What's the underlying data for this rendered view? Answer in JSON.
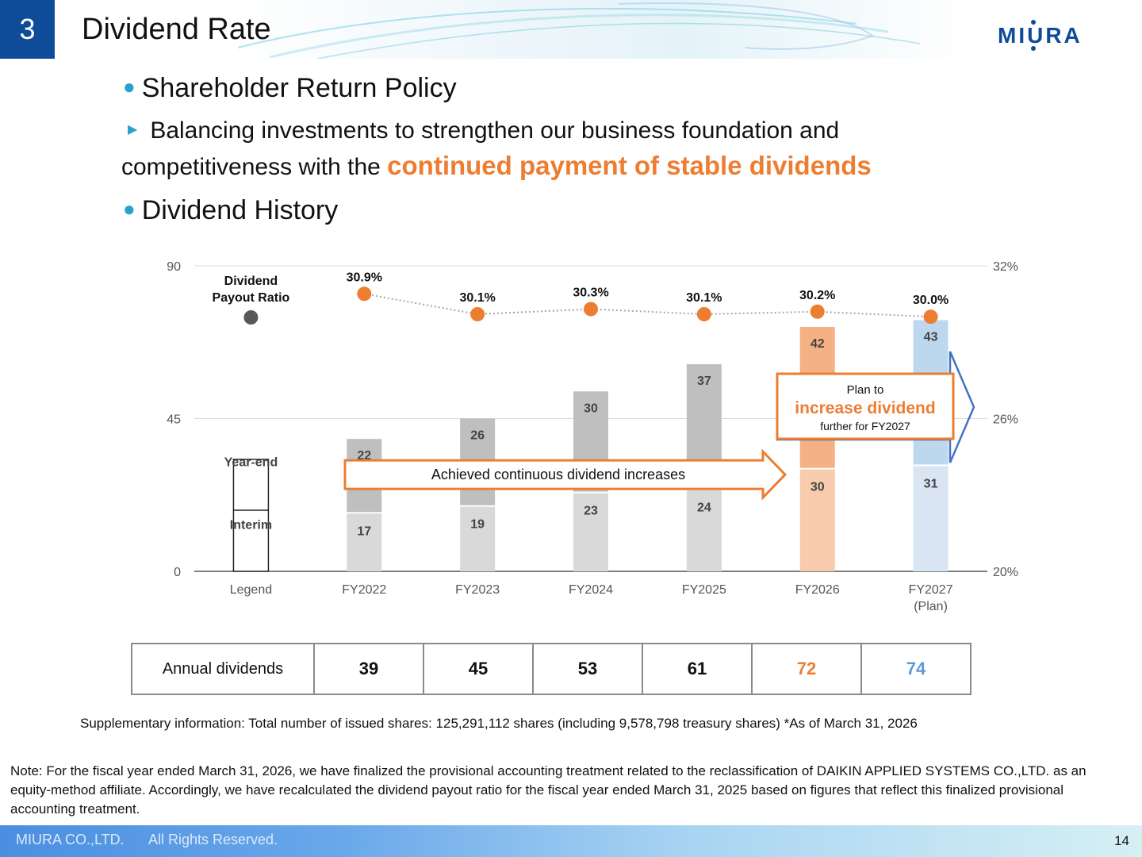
{
  "header": {
    "section_number": "3",
    "title": "Dividend Rate",
    "logo_text": "MIURA"
  },
  "policy": {
    "heading": "Shareholder Return Policy",
    "line1": "Balancing investments to strengthen our business foundation and",
    "line2_prefix": "competitiveness with the ",
    "line2_highlight": "continued payment of stable dividends"
  },
  "history": {
    "heading": "Dividend History"
  },
  "chart_data": {
    "type": "bar",
    "stacked": true,
    "categories": [
      "Legend",
      "FY2022",
      "FY2023",
      "FY2024",
      "FY2025",
      "FY2026",
      "FY2027\n(Plan)"
    ],
    "series": [
      {
        "name": "Interim",
        "values": [
          null,
          17,
          19,
          23,
          24,
          30,
          31
        ]
      },
      {
        "name": "Year-end",
        "values": [
          null,
          22,
          26,
          30,
          37,
          42,
          43
        ]
      },
      {
        "name": "Dividend Payout Ratio",
        "axis": "right",
        "values": [
          null,
          30.9,
          30.1,
          30.3,
          30.1,
          30.2,
          30.0
        ]
      }
    ],
    "y_left": {
      "ticks": [
        "0",
        "45",
        "90"
      ],
      "range": [
        0,
        90
      ]
    },
    "y_right": {
      "ticks": [
        "20%",
        "26%",
        "32%"
      ],
      "range": [
        20,
        32
      ]
    },
    "payout_labels": [
      "30.9%",
      "30.1%",
      "30.3%",
      "30.1%",
      "30.2%",
      "30.0%"
    ],
    "legend": {
      "payout_ratio": "Dividend Payout Ratio",
      "year_end": "Year-end",
      "interim": "Interim"
    },
    "annotations": {
      "achieved": "Achieved continuous dividend increases",
      "plan_line1": "Plan to",
      "plan_highlight": "increase dividend",
      "plan_line3": "further for FY2027"
    },
    "colors": {
      "interim": "#d9d9d9",
      "year_end": "#bfbfbf",
      "fy2026_interim": "#f8cbad",
      "fy2026_year_end": "#f4b183",
      "fy2027_interim": "#dae5f4",
      "fy2027_year_end": "#bdd7ee",
      "payout": "#ed7d31",
      "legend_dot": "#595959",
      "plan_arrow": "#4472c4"
    },
    "grid": true
  },
  "annual_dividends": {
    "label": "Annual dividends",
    "values": [
      "39",
      "45",
      "53",
      "61",
      "72",
      "74"
    ],
    "colors": [
      "#111111",
      "#111111",
      "#111111",
      "#111111",
      "#ed7d31",
      "#5b9bd5"
    ]
  },
  "supplementary": "Supplementary information: Total number of issued shares: 125,291,112 shares (including 9,578,798 treasury shares) *As of March 31, 2026",
  "note": "Note: For the fiscal year ended March 31, 2026, we have finalized the provisional accounting treatment related to the reclassification of DAIKIN APPLIED SYSTEMS CO.,LTD. as an equity-method affiliate. Accordingly, we have recalculated the dividend payout ratio for the fiscal year ended March 31, 2025 based on figures that reflect this finalized provisional accounting treatment.",
  "footer": {
    "company": "MIURA CO.,LTD.",
    "rights": "All Rights Reserved.",
    "page": "14"
  }
}
